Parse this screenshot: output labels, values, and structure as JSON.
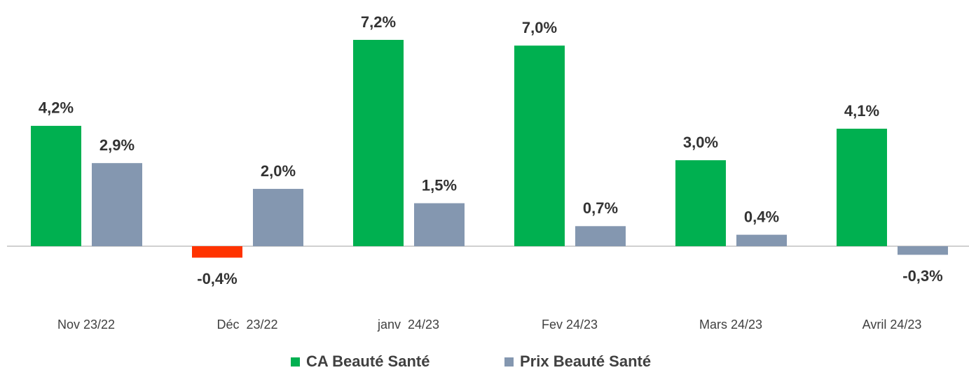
{
  "chart_data": {
    "type": "bar",
    "categories": [
      "Nov 23/22",
      "Déc  23/22",
      "janv  24/23",
      "Fev 24/23",
      "Mars 24/23",
      "Avril 24/23"
    ],
    "series": [
      {
        "name": "CA Beauté Santé",
        "color": "#00b050",
        "negative_color": "#ff3300",
        "values": [
          4.2,
          -0.4,
          7.2,
          7.0,
          3.0,
          4.1
        ],
        "value_labels": [
          "4,2%",
          "-0,4%",
          "7,2%",
          "7,0%",
          "3,0%",
          "4,1%"
        ]
      },
      {
        "name": "Prix Beauté Santé",
        "color": "#8497b0",
        "values": [
          2.9,
          2.0,
          1.5,
          0.7,
          0.4,
          -0.3
        ],
        "value_labels": [
          "2,9%",
          "2,0%",
          "1,5%",
          "0,7%",
          "0,4%",
          "-0,3%"
        ]
      }
    ],
    "legend": "bottom"
  }
}
